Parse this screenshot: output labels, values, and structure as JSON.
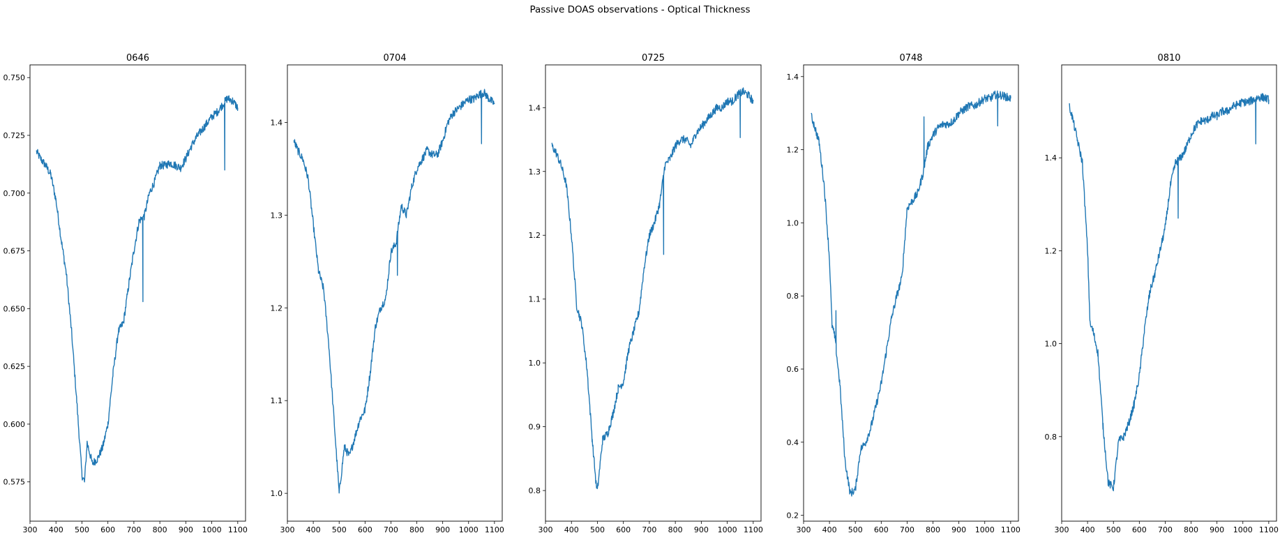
{
  "figure": {
    "suptitle": "Passive DOAS observations - Optical Thickness",
    "line_color": "#1f77b4"
  },
  "chart_data": [
    {
      "type": "line",
      "title": "0646",
      "xlabel": "",
      "ylabel": "",
      "xlim": [
        300,
        1130
      ],
      "ylim": [
        0.558,
        0.7555
      ],
      "xticks": [
        300,
        400,
        500,
        600,
        700,
        800,
        900,
        1000,
        1100
      ],
      "yticks": [
        0.575,
        0.6,
        0.625,
        0.65,
        0.675,
        0.7,
        0.725,
        0.75
      ],
      "ytick_labels": [
        "0.575",
        "0.600",
        "0.625",
        "0.650",
        "0.675",
        "0.700",
        "0.725",
        "0.750"
      ],
      "grid": false,
      "series": [
        {
          "x": [
            325,
            340,
            360,
            380,
            400,
            420,
            440,
            460,
            480,
            500,
            510,
            520,
            540,
            560,
            580,
            600,
            620,
            640,
            660,
            680,
            700,
            720,
            740,
            760,
            780,
            800,
            820,
            840,
            860,
            880,
            900,
            920,
            940,
            960,
            980,
            1000,
            1020,
            1040,
            1060,
            1080,
            1100
          ],
          "y": [
            0.718,
            0.715,
            0.712,
            0.708,
            0.697,
            0.68,
            0.665,
            0.64,
            0.61,
            0.578,
            0.575,
            0.592,
            0.583,
            0.585,
            0.59,
            0.6,
            0.622,
            0.64,
            0.644,
            0.66,
            0.675,
            0.688,
            0.69,
            0.7,
            0.705,
            0.712,
            0.712,
            0.713,
            0.712,
            0.711,
            0.715,
            0.72,
            0.724,
            0.727,
            0.73,
            0.733,
            0.735,
            0.738,
            0.741,
            0.74,
            0.737
          ],
          "spikes": [
            [
              735,
              0.653
            ],
            [
              1050,
              0.71
            ]
          ]
        }
      ]
    },
    {
      "type": "line",
      "title": "0704",
      "xlabel": "",
      "ylabel": "",
      "xlim": [
        300,
        1130
      ],
      "ylim": [
        0.97,
        1.462
      ],
      "xticks": [
        300,
        400,
        500,
        600,
        700,
        800,
        900,
        1000,
        1100
      ],
      "yticks": [
        1.0,
        1.1,
        1.2,
        1.3,
        1.4
      ],
      "ytick_labels": [
        "1.0",
        "1.1",
        "1.2",
        "1.3",
        "1.4"
      ],
      "grid": false,
      "series": [
        {
          "x": [
            325,
            340,
            360,
            380,
            400,
            420,
            440,
            460,
            480,
            495,
            500,
            520,
            540,
            560,
            580,
            600,
            620,
            640,
            660,
            680,
            700,
            720,
            740,
            760,
            780,
            800,
            820,
            840,
            860,
            880,
            900,
            920,
            940,
            960,
            980,
            1000,
            1020,
            1040,
            1060,
            1080,
            1100
          ],
          "y": [
            1.38,
            1.37,
            1.36,
            1.34,
            1.29,
            1.24,
            1.22,
            1.16,
            1.08,
            1.02,
            1.0,
            1.05,
            1.04,
            1.06,
            1.08,
            1.09,
            1.13,
            1.18,
            1.2,
            1.21,
            1.26,
            1.27,
            1.31,
            1.3,
            1.33,
            1.35,
            1.36,
            1.37,
            1.365,
            1.365,
            1.38,
            1.4,
            1.41,
            1.415,
            1.42,
            1.425,
            1.425,
            1.43,
            1.432,
            1.425,
            1.42
          ],
          "spikes": [
            [
              725,
              1.235
            ],
            [
              1050,
              1.377
            ]
          ]
        }
      ]
    },
    {
      "type": "line",
      "title": "0725",
      "xlabel": "",
      "ylabel": "",
      "xlim": [
        300,
        1130
      ],
      "ylim": [
        0.752,
        1.467
      ],
      "xticks": [
        300,
        400,
        500,
        600,
        700,
        800,
        900,
        1000,
        1100
      ],
      "yticks": [
        0.8,
        0.9,
        1.0,
        1.1,
        1.2,
        1.3,
        1.4
      ],
      "ytick_labels": [
        "0.8",
        "0.9",
        "1.0",
        "1.1",
        "1.2",
        "1.3",
        "1.4"
      ],
      "grid": false,
      "series": [
        {
          "x": [
            325,
            340,
            360,
            380,
            400,
            420,
            440,
            460,
            480,
            495,
            500,
            520,
            540,
            560,
            580,
            600,
            620,
            640,
            660,
            680,
            700,
            720,
            740,
            760,
            780,
            800,
            820,
            840,
            860,
            880,
            900,
            920,
            940,
            960,
            980,
            1000,
            1020,
            1040,
            1060,
            1080,
            1100
          ],
          "y": [
            1.34,
            1.33,
            1.31,
            1.28,
            1.2,
            1.09,
            1.06,
            0.99,
            0.88,
            0.81,
            0.8,
            0.88,
            0.89,
            0.92,
            0.96,
            0.97,
            1.02,
            1.05,
            1.08,
            1.15,
            1.2,
            1.22,
            1.25,
            1.31,
            1.32,
            1.34,
            1.35,
            1.35,
            1.34,
            1.36,
            1.37,
            1.38,
            1.39,
            1.4,
            1.4,
            1.41,
            1.41,
            1.42,
            1.425,
            1.42,
            1.41
          ],
          "spikes": [
            [
              755,
              1.17
            ],
            [
              1050,
              1.353
            ]
          ]
        }
      ]
    },
    {
      "type": "line",
      "title": "0748",
      "xlabel": "",
      "ylabel": "",
      "xlim": [
        300,
        1130
      ],
      "ylim": [
        0.184,
        1.432
      ],
      "xticks": [
        300,
        400,
        500,
        600,
        700,
        800,
        900,
        1000,
        1100
      ],
      "yticks": [
        0.2,
        0.4,
        0.6,
        0.8,
        1.0,
        1.2,
        1.4
      ],
      "ytick_labels": [
        "0.2",
        "0.4",
        "0.6",
        "0.8",
        "1.0",
        "1.2",
        "1.4"
      ],
      "grid": false,
      "series": [
        {
          "x": [
            330,
            340,
            360,
            380,
            400,
            410,
            420,
            440,
            460,
            480,
            500,
            520,
            540,
            560,
            580,
            600,
            620,
            640,
            660,
            680,
            700,
            720,
            740,
            760,
            780,
            800,
            820,
            840,
            860,
            880,
            900,
            920,
            940,
            960,
            980,
            1000,
            1020,
            1040,
            1060,
            1080,
            1100
          ],
          "y": [
            1.29,
            1.27,
            1.22,
            1.1,
            0.9,
            0.72,
            0.69,
            0.56,
            0.35,
            0.26,
            0.27,
            0.38,
            0.4,
            0.44,
            0.5,
            0.56,
            0.65,
            0.74,
            0.8,
            0.85,
            1.04,
            1.06,
            1.08,
            1.13,
            1.21,
            1.24,
            1.26,
            1.27,
            1.27,
            1.28,
            1.3,
            1.31,
            1.32,
            1.32,
            1.33,
            1.34,
            1.34,
            1.35,
            1.35,
            1.345,
            1.34
          ],
          "spikes": [
            [
              425,
              0.76
            ],
            [
              765,
              1.29
            ],
            [
              1050,
              1.265
            ]
          ]
        }
      ]
    },
    {
      "type": "line",
      "title": "0810",
      "xlabel": "",
      "ylabel": "",
      "xlim": [
        300,
        1130
      ],
      "ylim": [
        0.618,
        1.6
      ],
      "xticks": [
        300,
        400,
        500,
        600,
        700,
        800,
        900,
        1000,
        1100
      ],
      "yticks": [
        0.8,
        1.0,
        1.2,
        1.4
      ],
      "ytick_labels": [
        "0.8",
        "1.0",
        "1.2",
        "1.4"
      ],
      "grid": false,
      "series": [
        {
          "x": [
            330,
            340,
            360,
            380,
            400,
            410,
            420,
            440,
            460,
            480,
            500,
            520,
            540,
            560,
            580,
            600,
            620,
            640,
            660,
            680,
            700,
            720,
            740,
            760,
            780,
            800,
            820,
            840,
            860,
            880,
            900,
            920,
            940,
            960,
            980,
            1000,
            1020,
            1040,
            1060,
            1080,
            1100
          ],
          "y": [
            1.51,
            1.49,
            1.44,
            1.39,
            1.2,
            1.04,
            1.03,
            0.98,
            0.82,
            0.7,
            0.69,
            0.79,
            0.8,
            0.83,
            0.87,
            0.93,
            1.03,
            1.11,
            1.15,
            1.2,
            1.25,
            1.34,
            1.39,
            1.4,
            1.42,
            1.45,
            1.47,
            1.48,
            1.48,
            1.49,
            1.49,
            1.5,
            1.5,
            1.51,
            1.515,
            1.52,
            1.52,
            1.525,
            1.53,
            1.53,
            1.525
          ],
          "spikes": [
            [
              640,
              1.1
            ],
            [
              750,
              1.27
            ],
            [
              1050,
              1.43
            ]
          ]
        }
      ]
    }
  ]
}
